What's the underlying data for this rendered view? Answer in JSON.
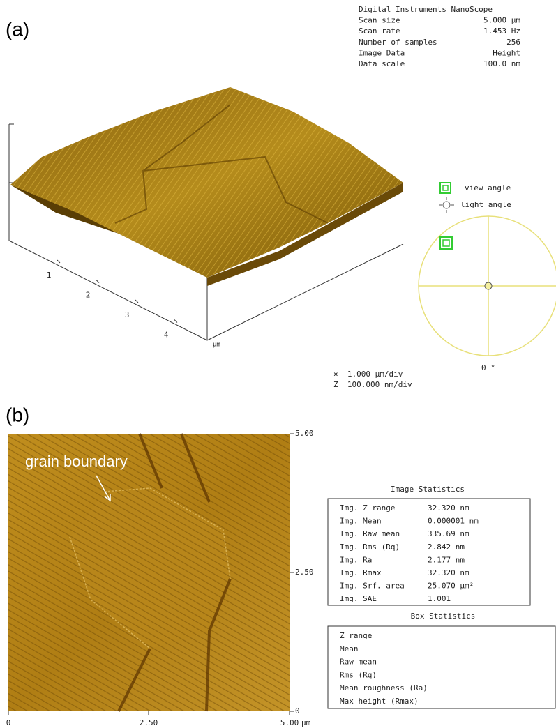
{
  "panel_a": {
    "label": "(a)",
    "header": [
      [
        "Digital Instruments NanoScope",
        ""
      ],
      [
        "Scan size",
        "5.000 µm"
      ],
      [
        "Scan rate",
        "1.453 Hz"
      ],
      [
        "Number of samples",
        "256"
      ],
      [
        "Image Data",
        "Height"
      ],
      [
        "Data scale",
        "100.0 nm"
      ]
    ],
    "axis_ticks": [
      "1",
      "2",
      "3",
      "4"
    ],
    "axis_unit": "µm",
    "view_angle": "view angle",
    "light_angle": "light angle",
    "angle": "0 °",
    "scale": [
      "×  1.000 µm/div",
      "Z  100.000 nm/div"
    ]
  },
  "panel_b": {
    "label": "(b)",
    "annotation": "grain boundary",
    "right_ticks": [
      "5.00",
      "2.50",
      "0"
    ],
    "bottom_ticks": [
      "0",
      "2.50",
      "5.00"
    ],
    "bottom_unit": "µm",
    "image_statistics": {
      "title": "Image Statistics",
      "rows": [
        [
          "Img. Z range",
          "32.320 nm"
        ],
        [
          "Img. Mean",
          "0.000001 nm"
        ],
        [
          "Img. Raw mean",
          "335.69 nm"
        ],
        [
          "Img. Rms (Rq)",
          "2.842 nm"
        ],
        [
          "Img. Ra",
          "2.177 nm"
        ],
        [
          "Img. Rmax",
          "32.320 nm"
        ],
        [
          "Img. Srf. area",
          "25.070 µm²"
        ],
        [
          "Img. SAE",
          "1.001"
        ]
      ]
    },
    "box_statistics": {
      "title": "Box Statistics",
      "rows": [
        "Z range",
        "Mean",
        "Raw mean",
        "Rms (Rq)",
        "Mean roughness (Ra)",
        "Max height (Rmax)"
      ]
    }
  }
}
